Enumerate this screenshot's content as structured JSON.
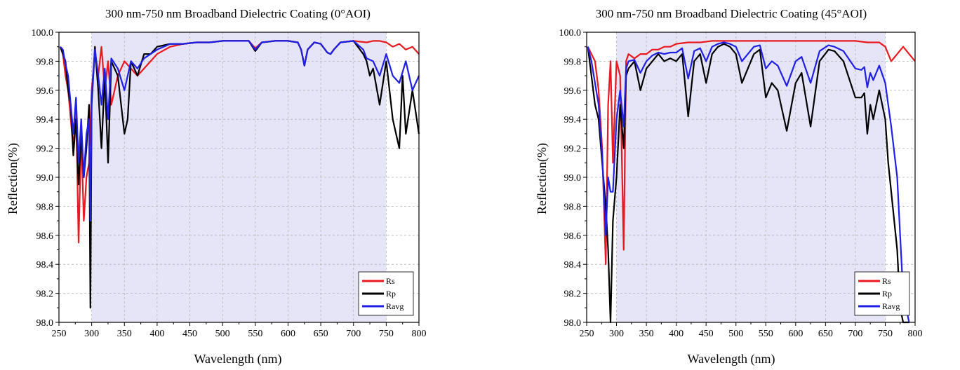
{
  "chart_data": [
    {
      "type": "line",
      "title": "300 nm-750 nm Broadband Dielectric Coating (0°AOI)",
      "xlabel": "Wavelength (nm)",
      "ylabel": "Reflection(%)",
      "xlim": [
        250,
        800
      ],
      "ylim": [
        98.0,
        100.0
      ],
      "xticks": [
        "250",
        "300",
        "350",
        "400",
        "450",
        "500",
        "550",
        "600",
        "650",
        "700",
        "750",
        "800"
      ],
      "yticks": [
        "98.0",
        "98.2",
        "98.4",
        "98.6",
        "98.8",
        "99.0",
        "99.2",
        "99.4",
        "99.6",
        "99.8",
        "100.0"
      ],
      "shaded_band": [
        300,
        750
      ],
      "grid": true,
      "legend_position": "bottom-right",
      "colors": {
        "Rs": "#e8191f",
        "Rp": "#000000",
        "Ravg": "#1f1fe6",
        "band": "#e6e4f7"
      },
      "series": [
        {
          "name": "Rs",
          "x": [
            252,
            256,
            260,
            264,
            268,
            272,
            276,
            280,
            284,
            288,
            292,
            296,
            300,
            305,
            310,
            315,
            320,
            325,
            330,
            340,
            350,
            360,
            370,
            380,
            390,
            400,
            420,
            440,
            460,
            480,
            500,
            520,
            540,
            550,
            560,
            580,
            600,
            615,
            620,
            625,
            630,
            640,
            650,
            660,
            665,
            670,
            680,
            700,
            720,
            730,
            740,
            750,
            760,
            770,
            780,
            790,
            800
          ],
          "y": [
            99.9,
            99.85,
            99.7,
            99.6,
            99.4,
            99.2,
            99.5,
            98.55,
            99.3,
            98.7,
            99.0,
            99.1,
            99.6,
            99.85,
            99.7,
            99.9,
            99.6,
            99.8,
            99.5,
            99.7,
            99.8,
            99.75,
            99.7,
            99.75,
            99.8,
            99.85,
            99.9,
            99.92,
            99.93,
            99.93,
            99.94,
            99.94,
            99.94,
            99.89,
            99.93,
            99.94,
            99.94,
            99.93,
            99.88,
            99.77,
            99.88,
            99.93,
            99.92,
            99.86,
            99.85,
            99.88,
            99.93,
            99.94,
            99.93,
            99.94,
            99.94,
            99.93,
            99.9,
            99.92,
            99.88,
            99.9,
            99.85
          ]
        },
        {
          "name": "Rp",
          "x": [
            252,
            256,
            260,
            264,
            268,
            272,
            276,
            280,
            284,
            288,
            292,
            296,
            298,
            300,
            305,
            310,
            315,
            320,
            325,
            330,
            340,
            350,
            355,
            360,
            370,
            380,
            390,
            400,
            420,
            440,
            460,
            480,
            500,
            520,
            540,
            550,
            560,
            580,
            600,
            615,
            620,
            625,
            630,
            640,
            650,
            660,
            665,
            670,
            680,
            700,
            715,
            720,
            725,
            730,
            740,
            750,
            760,
            770,
            775,
            780,
            790,
            800
          ],
          "y": [
            99.9,
            99.85,
            99.8,
            99.6,
            99.5,
            99.15,
            99.4,
            98.95,
            99.3,
            99.0,
            99.2,
            99.5,
            98.1,
            99.5,
            99.9,
            99.6,
            99.2,
            99.7,
            99.1,
            99.8,
            99.7,
            99.3,
            99.4,
            99.8,
            99.7,
            99.85,
            99.85,
            99.9,
            99.92,
            99.92,
            99.93,
            99.93,
            99.94,
            99.94,
            99.94,
            99.87,
            99.93,
            99.94,
            99.94,
            99.93,
            99.88,
            99.77,
            99.88,
            99.93,
            99.92,
            99.86,
            99.85,
            99.88,
            99.93,
            99.94,
            99.85,
            99.8,
            99.7,
            99.75,
            99.5,
            99.8,
            99.4,
            99.2,
            99.7,
            99.3,
            99.6,
            99.3
          ]
        },
        {
          "name": "Ravg",
          "x": [
            252,
            256,
            260,
            264,
            268,
            272,
            276,
            280,
            284,
            288,
            292,
            296,
            298,
            300,
            305,
            310,
            315,
            320,
            325,
            330,
            340,
            350,
            360,
            370,
            380,
            390,
            400,
            420,
            440,
            460,
            480,
            500,
            520,
            540,
            550,
            560,
            580,
            600,
            615,
            620,
            625,
            630,
            640,
            650,
            660,
            665,
            670,
            680,
            700,
            715,
            720,
            730,
            740,
            750,
            760,
            770,
            780,
            790,
            800
          ],
          "y": [
            99.9,
            99.88,
            99.78,
            99.7,
            99.5,
            99.3,
            99.55,
            99.1,
            99.4,
            99.0,
            99.3,
            99.4,
            98.7,
            99.55,
            99.88,
            99.7,
            99.5,
            99.75,
            99.4,
            99.82,
            99.75,
            99.6,
            99.8,
            99.75,
            99.82,
            99.85,
            99.88,
            99.92,
            99.92,
            99.93,
            99.93,
            99.94,
            99.94,
            99.94,
            99.88,
            99.93,
            99.94,
            99.94,
            99.93,
            99.88,
            99.77,
            99.88,
            99.93,
            99.92,
            99.86,
            99.85,
            99.88,
            99.93,
            99.94,
            99.88,
            99.82,
            99.8,
            99.7,
            99.85,
            99.7,
            99.65,
            99.8,
            99.6,
            99.7
          ]
        }
      ]
    },
    {
      "type": "line",
      "title": "300 nm-750 nm Broadband Dielectric Coating (45°AOI)",
      "xlabel": "Wavelength (nm)",
      "ylabel": "Reflection(%)",
      "xlim": [
        250,
        800
      ],
      "ylim": [
        98.0,
        100.0
      ],
      "xticks": [
        "250",
        "300",
        "350",
        "400",
        "450",
        "500",
        "550",
        "600",
        "650",
        "700",
        "750",
        "800"
      ],
      "yticks": [
        "98.0",
        "98.2",
        "98.4",
        "98.6",
        "98.8",
        "99.0",
        "99.2",
        "99.4",
        "99.6",
        "99.8",
        "100.0"
      ],
      "shaded_band": [
        300,
        750
      ],
      "grid": true,
      "legend_position": "bottom-right",
      "colors": {
        "Rs": "#e8191f",
        "Rp": "#000000",
        "Ravg": "#1f1fe6",
        "band": "#e6e4f7"
      },
      "series": [
        {
          "name": "Rs",
          "x": [
            252,
            258,
            264,
            270,
            276,
            282,
            286,
            290,
            294,
            300,
            306,
            312,
            316,
            320,
            330,
            340,
            350,
            360,
            370,
            380,
            390,
            400,
            420,
            440,
            460,
            480,
            500,
            520,
            540,
            560,
            580,
            600,
            620,
            640,
            660,
            680,
            700,
            720,
            740,
            750,
            760,
            770,
            780,
            790,
            800
          ],
          "y": [
            99.9,
            99.85,
            99.8,
            99.6,
            99.2,
            98.4,
            99.5,
            99.8,
            99.1,
            99.8,
            99.7,
            98.5,
            99.8,
            99.85,
            99.82,
            99.85,
            99.85,
            99.88,
            99.88,
            99.9,
            99.9,
            99.92,
            99.93,
            99.93,
            99.94,
            99.94,
            99.94,
            99.94,
            99.94,
            99.94,
            99.94,
            99.94,
            99.94,
            99.94,
            99.94,
            99.94,
            99.94,
            99.93,
            99.93,
            99.9,
            99.8,
            99.85,
            99.9,
            99.85,
            99.8
          ]
        },
        {
          "name": "Rp",
          "x": [
            252,
            258,
            264,
            270,
            276,
            282,
            286,
            290,
            294,
            300,
            306,
            312,
            316,
            320,
            330,
            340,
            350,
            360,
            370,
            380,
            390,
            400,
            410,
            420,
            430,
            440,
            450,
            460,
            470,
            480,
            490,
            500,
            510,
            520,
            530,
            540,
            550,
            560,
            570,
            585,
            600,
            610,
            625,
            640,
            655,
            665,
            680,
            700,
            710,
            715,
            720,
            725,
            730,
            740,
            750,
            755,
            760,
            770,
            775,
            780,
            790
          ],
          "y": [
            99.9,
            99.7,
            99.5,
            99.4,
            99.1,
            98.8,
            98.5,
            98.0,
            98.7,
            99.0,
            99.5,
            99.2,
            99.7,
            99.75,
            99.8,
            99.6,
            99.75,
            99.8,
            99.85,
            99.8,
            99.82,
            99.8,
            99.85,
            99.42,
            99.8,
            99.85,
            99.65,
            99.85,
            99.9,
            99.92,
            99.9,
            99.85,
            99.65,
            99.75,
            99.85,
            99.88,
            99.55,
            99.65,
            99.6,
            99.32,
            99.65,
            99.72,
            99.35,
            99.8,
            99.88,
            99.87,
            99.8,
            99.55,
            99.55,
            99.58,
            99.3,
            99.5,
            99.4,
            99.6,
            99.4,
            99.1,
            98.9,
            98.5,
            98.1,
            98.0,
            98.0
          ]
        },
        {
          "name": "Ravg",
          "x": [
            252,
            258,
            264,
            270,
            276,
            282,
            286,
            290,
            294,
            300,
            306,
            312,
            316,
            320,
            330,
            340,
            350,
            360,
            370,
            380,
            390,
            400,
            410,
            420,
            430,
            440,
            450,
            460,
            470,
            480,
            490,
            500,
            510,
            520,
            530,
            540,
            550,
            560,
            570,
            585,
            600,
            610,
            625,
            640,
            655,
            665,
            680,
            700,
            710,
            715,
            720,
            725,
            730,
            740,
            750,
            755,
            760,
            770,
            775,
            780,
            790
          ],
          "y": [
            99.9,
            99.8,
            99.65,
            99.5,
            99.15,
            98.6,
            99.0,
            98.9,
            98.9,
            99.4,
            99.6,
            99.35,
            99.75,
            99.8,
            99.81,
            99.72,
            99.8,
            99.84,
            99.86,
            99.85,
            99.86,
            99.86,
            99.89,
            99.68,
            99.87,
            99.89,
            99.8,
            99.9,
            99.92,
            99.93,
            99.92,
            99.9,
            99.8,
            99.85,
            99.9,
            99.91,
            99.75,
            99.8,
            99.77,
            99.63,
            99.8,
            99.83,
            99.65,
            99.87,
            99.91,
            99.9,
            99.87,
            99.75,
            99.74,
            99.76,
            99.62,
            99.72,
            99.67,
            99.77,
            99.65,
            99.5,
            99.35,
            99.0,
            98.6,
            98.2,
            98.0
          ]
        }
      ]
    }
  ]
}
